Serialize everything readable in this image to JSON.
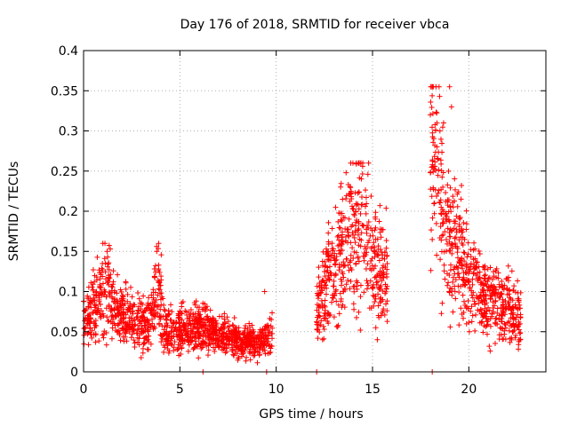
{
  "chart_data": {
    "type": "scatter",
    "title": "Day 176 of 2018, SRMTID for receiver vbca",
    "xlabel": "GPS time / hours",
    "ylabel": "SRMTID / TECUs",
    "xlim": [
      0,
      24
    ],
    "ylim": [
      0,
      0.4
    ],
    "x_ticks": [
      0,
      5,
      10,
      15,
      20
    ],
    "x_tick_labels": [
      "0",
      "5",
      "10",
      "15",
      "20"
    ],
    "y_ticks": [
      0,
      0.05,
      0.1,
      0.15,
      0.2,
      0.25,
      0.3,
      0.35,
      0.4
    ],
    "y_tick_labels": [
      "0",
      "0.05",
      "0.1",
      "0.15",
      "0.2",
      "0.25",
      "0.3",
      "0.35",
      "0.4"
    ],
    "grid": true,
    "marker": "+",
    "series": [
      {
        "name": "SRMTID",
        "color": "#ff0000",
        "segments": [
          {
            "x_start": 0.0,
            "x_end": 9.8,
            "y_range": [
              0.01,
              0.16
            ],
            "level_points": [
              [
                0.0,
                0.065
              ],
              [
                0.5,
                0.08
              ],
              [
                1.0,
                0.1
              ],
              [
                1.2,
                0.12
              ],
              [
                1.5,
                0.08
              ],
              [
                2.5,
                0.065
              ],
              [
                3.5,
                0.06
              ],
              [
                3.9,
                0.11
              ],
              [
                4.2,
                0.05
              ],
              [
                5.0,
                0.05
              ],
              [
                6.0,
                0.055
              ],
              [
                7.0,
                0.045
              ],
              [
                8.0,
                0.04
              ],
              [
                9.0,
                0.035
              ],
              [
                9.8,
                0.045
              ]
            ]
          },
          {
            "x_start": 12.1,
            "x_end": 15.8,
            "y_range": [
              0.04,
              0.26
            ],
            "level_points": [
              [
                12.1,
                0.08
              ],
              [
                12.8,
                0.12
              ],
              [
                13.5,
                0.15
              ],
              [
                14.3,
                0.19
              ],
              [
                14.8,
                0.16
              ],
              [
                15.3,
                0.13
              ],
              [
                15.8,
                0.12
              ]
            ]
          },
          {
            "x_start": 18.0,
            "x_end": 22.7,
            "y_range": [
              0.02,
              0.355
            ],
            "level_points": [
              [
                18.0,
                0.27
              ],
              [
                18.5,
                0.22
              ],
              [
                19.0,
                0.16
              ],
              [
                19.5,
                0.14
              ],
              [
                20.0,
                0.12
              ],
              [
                20.5,
                0.1
              ],
              [
                21.0,
                0.09
              ],
              [
                21.5,
                0.085
              ],
              [
                22.0,
                0.08
              ],
              [
                22.7,
                0.065
              ]
            ]
          }
        ],
        "outliers": [
          [
            1.0,
            0.16
          ],
          [
            3.8,
            0.15
          ],
          [
            14.4,
            0.26
          ],
          [
            18.0,
            0.32
          ],
          [
            18.5,
            0.3
          ],
          [
            19.0,
            0.355
          ],
          [
            19.1,
            0.33
          ],
          [
            9.4,
            0.1
          ],
          [
            6.2,
            0.0
          ],
          [
            9.5,
            0.0
          ],
          [
            12.1,
            0.0
          ],
          [
            18.1,
            0.0
          ]
        ]
      }
    ]
  }
}
